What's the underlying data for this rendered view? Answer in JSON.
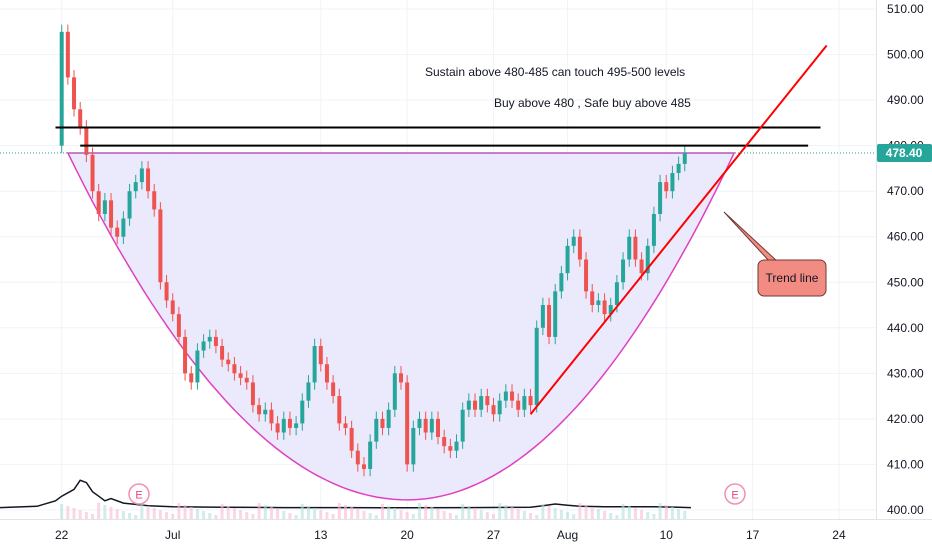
{
  "chart_data": {
    "type": "candlestick",
    "symbol_price_label": "478.40",
    "y_ticks": [
      "510.00",
      "500.00",
      "490.00",
      "480.00",
      "470.00",
      "460.00",
      "450.00",
      "440.00",
      "430.00",
      "420.00",
      "410.00",
      "400.00"
    ],
    "y_tick_values": [
      510,
      500,
      490,
      480,
      470,
      460,
      450,
      440,
      430,
      420,
      410,
      400
    ],
    "ylim": [
      398,
      512
    ],
    "x_ticks": [
      "22",
      "Jul",
      "13",
      "20",
      "27",
      "Aug",
      "10",
      "17",
      "24"
    ],
    "x_tick_days": [
      22,
      31,
      43,
      50,
      57,
      63,
      71,
      78,
      85
    ],
    "xlim": [
      17,
      88
    ],
    "last_price": 478.4,
    "annotations": {
      "note1": "Sustain above 480-485  can touch 495-500 levels",
      "note2": "Buy above 480 , Safe buy above 485",
      "trend_label": "Trend line"
    },
    "earnings_marker": "E",
    "levels": [
      484,
      480
    ],
    "trend_line": {
      "x0": 60,
      "y0": 421,
      "x1": 84,
      "y1": 502
    },
    "cup": {
      "x_left": 22.5,
      "x_mid": 50,
      "x_right": 76.5,
      "y_top": 478.4,
      "y_bottom": 402.2
    },
    "price_path": [
      [
        21.5,
        480
      ],
      [
        22,
        505
      ],
      [
        22.5,
        495
      ],
      [
        23,
        488
      ],
      [
        23.5,
        484
      ],
      [
        24,
        478
      ],
      [
        24.5,
        470
      ],
      [
        25,
        465
      ],
      [
        25.5,
        468
      ],
      [
        26,
        462
      ],
      [
        26.5,
        460
      ],
      [
        27,
        464
      ],
      [
        27.5,
        470
      ],
      [
        28,
        472
      ],
      [
        28.5,
        475
      ],
      [
        29,
        470
      ],
      [
        29.5,
        466
      ],
      [
        30,
        450
      ],
      [
        30.5,
        446
      ],
      [
        31,
        443
      ],
      [
        31.5,
        438
      ],
      [
        32,
        430
      ],
      [
        32.5,
        428
      ],
      [
        33,
        435
      ],
      [
        33.5,
        437
      ],
      [
        34,
        438
      ],
      [
        34.5,
        436
      ],
      [
        35,
        433
      ],
      [
        35.5,
        432
      ],
      [
        36,
        430
      ],
      [
        36.5,
        429
      ],
      [
        37,
        428
      ],
      [
        37.5,
        423
      ],
      [
        38,
        421
      ],
      [
        38.5,
        422
      ],
      [
        39,
        419
      ],
      [
        39.5,
        417
      ],
      [
        40,
        420
      ],
      [
        40.5,
        418
      ],
      [
        41,
        419
      ],
      [
        41.5,
        424
      ],
      [
        42,
        428
      ],
      [
        42.5,
        436
      ],
      [
        43,
        432
      ],
      [
        43.5,
        428
      ],
      [
        44,
        425
      ],
      [
        44.5,
        419
      ],
      [
        45,
        418
      ],
      [
        45.5,
        413
      ],
      [
        46,
        410
      ],
      [
        46.5,
        409
      ],
      [
        47,
        415
      ],
      [
        47.5,
        420
      ],
      [
        48,
        418
      ],
      [
        48.5,
        422
      ],
      [
        49,
        430
      ],
      [
        49.5,
        428
      ],
      [
        50,
        410
      ],
      [
        50.5,
        418
      ],
      [
        51,
        420
      ],
      [
        51.5,
        417
      ],
      [
        52,
        420
      ],
      [
        52.5,
        416
      ],
      [
        53,
        414
      ],
      [
        53.5,
        413
      ],
      [
        54,
        415
      ],
      [
        54.5,
        422
      ],
      [
        55,
        424
      ],
      [
        55.5,
        422
      ],
      [
        56,
        425
      ],
      [
        56.5,
        423
      ],
      [
        57,
        421
      ],
      [
        57.5,
        424
      ],
      [
        58,
        426
      ],
      [
        58.5,
        424
      ],
      [
        59,
        422
      ],
      [
        59.5,
        425
      ],
      [
        60,
        423
      ],
      [
        60.5,
        440
      ],
      [
        61,
        445
      ],
      [
        61.5,
        438
      ],
      [
        62,
        448
      ],
      [
        62.5,
        452
      ],
      [
        63,
        458
      ],
      [
        63.5,
        460
      ],
      [
        64,
        455
      ],
      [
        64.5,
        448
      ],
      [
        65,
        445
      ],
      [
        65.5,
        446
      ],
      [
        66,
        443
      ],
      [
        66.5,
        445
      ],
      [
        67,
        450
      ],
      [
        67.5,
        455
      ],
      [
        68,
        460
      ],
      [
        68.5,
        455
      ],
      [
        69,
        452
      ],
      [
        69.5,
        458
      ],
      [
        70,
        465
      ],
      [
        70.5,
        472
      ],
      [
        71,
        470
      ],
      [
        71.5,
        474
      ],
      [
        72,
        476
      ],
      [
        72.5,
        478.4
      ]
    ],
    "volume_path": [
      [
        17,
        400.5
      ],
      [
        20,
        400.8
      ],
      [
        21.5,
        402
      ],
      [
        22,
        403
      ],
      [
        23,
        404.5
      ],
      [
        23.5,
        406.5
      ],
      [
        24,
        406
      ],
      [
        24.5,
        404
      ],
      [
        25,
        403
      ],
      [
        25.5,
        402
      ],
      [
        26,
        402.5
      ],
      [
        27,
        401.5
      ],
      [
        28,
        401.2
      ],
      [
        29,
        400.9
      ],
      [
        31,
        400.7
      ],
      [
        35,
        400.6
      ],
      [
        40,
        400.5
      ],
      [
        45,
        400.5
      ],
      [
        50,
        400.45
      ],
      [
        55,
        400.5
      ],
      [
        60,
        400.6
      ],
      [
        61,
        400.9
      ],
      [
        62,
        401.3
      ],
      [
        63,
        401
      ],
      [
        64,
        400.8
      ],
      [
        66,
        400.7
      ],
      [
        70,
        400.7
      ],
      [
        72,
        400.6
      ],
      [
        73,
        400.5
      ]
    ],
    "colors": {
      "up": "#26a69a",
      "down": "#ef5350",
      "cup_fill": "#e8e6fb",
      "cup_stroke": "#e040c0",
      "trend": "#ff0000",
      "label_bg": "#f28b82",
      "price_tag": "#26a69a",
      "crosshair": "#26a69a"
    }
  }
}
